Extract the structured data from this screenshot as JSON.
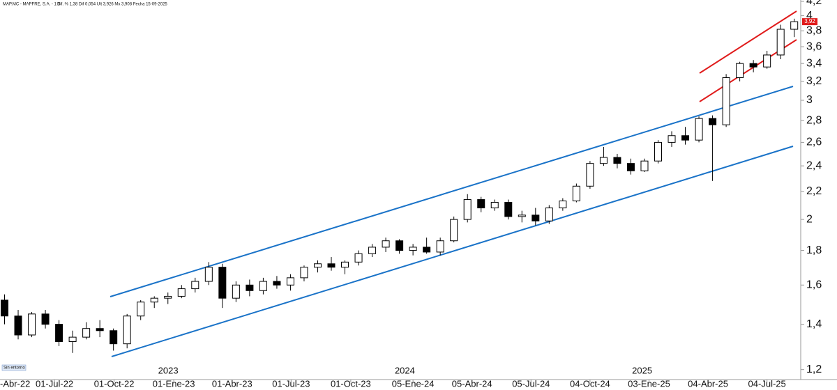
{
  "header": {
    "title": "MAP.MC - MAPFRE, S.A. - 1 S",
    "info": "Dif. % 1,38  Dif 0,054  Ult 3,926  Mx 3,908  Fecha 15-09-2025"
  },
  "footer_tag": "Sin entorno",
  "chart_data": {
    "type": "candlestick",
    "x": [
      "2022-04-15",
      "2022-05-06",
      "2022-05-27",
      "2022-06-17",
      "2022-07-08",
      "2022-07-29",
      "2022-08-19",
      "2022-09-09",
      "2022-09-30",
      "2022-10-21",
      "2022-11-11",
      "2022-12-02",
      "2022-12-23",
      "2023-01-13",
      "2023-02-03",
      "2023-02-24",
      "2023-03-17",
      "2023-04-07",
      "2023-04-28",
      "2023-05-19",
      "2023-06-09",
      "2023-06-30",
      "2023-07-21",
      "2023-08-11",
      "2023-09-01",
      "2023-09-22",
      "2023-10-13",
      "2023-11-03",
      "2023-11-24",
      "2023-12-15",
      "2024-01-05",
      "2024-01-26",
      "2024-02-16",
      "2024-03-08",
      "2024-03-29",
      "2024-04-19",
      "2024-05-10",
      "2024-05-31",
      "2024-06-21",
      "2024-07-12",
      "2024-08-02",
      "2024-08-23",
      "2024-09-13",
      "2024-10-04",
      "2024-10-25",
      "2024-11-15",
      "2024-12-06",
      "2024-12-27",
      "2025-01-17",
      "2025-02-07",
      "2025-02-28",
      "2025-03-21",
      "2025-04-11",
      "2025-05-02",
      "2025-05-23",
      "2025-06-13",
      "2025-07-04",
      "2025-07-25",
      "2025-08-15"
    ],
    "open": [
      1.52,
      1.44,
      1.35,
      1.45,
      1.4,
      1.32,
      1.34,
      1.38,
      1.37,
      1.31,
      1.44,
      1.51,
      1.53,
      1.54,
      1.58,
      1.62,
      1.7,
      1.53,
      1.6,
      1.57,
      1.62,
      1.6,
      1.64,
      1.7,
      1.72,
      1.7,
      1.73,
      1.78,
      1.82,
      1.86,
      1.8,
      1.82,
      1.79,
      1.86,
      2.0,
      2.14,
      2.08,
      2.12,
      2.02,
      2.03,
      1.99,
      2.08,
      2.13,
      2.24,
      2.42,
      2.47,
      2.42,
      2.36,
      2.44,
      2.6,
      2.66,
      2.62,
      2.82,
      2.76,
      3.24,
      3.4,
      3.36,
      3.5,
      3.82
    ],
    "high": [
      1.55,
      1.47,
      1.46,
      1.47,
      1.42,
      1.37,
      1.41,
      1.42,
      1.38,
      1.45,
      1.52,
      1.54,
      1.56,
      1.6,
      1.64,
      1.73,
      1.72,
      1.62,
      1.63,
      1.64,
      1.65,
      1.66,
      1.71,
      1.74,
      1.76,
      1.74,
      1.8,
      1.84,
      1.88,
      1.87,
      1.84,
      1.88,
      1.88,
      2.02,
      2.18,
      2.16,
      2.14,
      2.14,
      2.06,
      2.08,
      2.1,
      2.15,
      2.26,
      2.44,
      2.56,
      2.5,
      2.46,
      2.46,
      2.62,
      2.7,
      2.74,
      2.84,
      2.85,
      3.28,
      3.42,
      3.44,
      3.55,
      3.88,
      3.96
    ],
    "low": [
      1.4,
      1.33,
      1.34,
      1.38,
      1.3,
      1.27,
      1.33,
      1.34,
      1.28,
      1.29,
      1.42,
      1.48,
      1.5,
      1.53,
      1.56,
      1.6,
      1.48,
      1.51,
      1.54,
      1.55,
      1.58,
      1.57,
      1.62,
      1.67,
      1.68,
      1.66,
      1.71,
      1.76,
      1.79,
      1.78,
      1.77,
      1.78,
      1.77,
      1.85,
      1.98,
      2.05,
      2.06,
      2.0,
      1.98,
      1.96,
      1.97,
      2.06,
      2.12,
      2.22,
      2.4,
      2.38,
      2.33,
      2.35,
      2.42,
      2.56,
      2.58,
      2.6,
      2.28,
      2.74,
      3.2,
      3.3,
      3.34,
      3.45,
      3.72
    ],
    "close": [
      1.44,
      1.35,
      1.45,
      1.4,
      1.32,
      1.34,
      1.38,
      1.37,
      1.31,
      1.44,
      1.51,
      1.53,
      1.54,
      1.58,
      1.62,
      1.7,
      1.53,
      1.6,
      1.57,
      1.62,
      1.6,
      1.64,
      1.7,
      1.72,
      1.7,
      1.73,
      1.78,
      1.82,
      1.86,
      1.8,
      1.82,
      1.79,
      1.86,
      2.0,
      2.14,
      2.08,
      2.12,
      2.02,
      2.03,
      1.99,
      2.08,
      2.13,
      2.24,
      2.42,
      2.47,
      2.42,
      2.36,
      2.44,
      2.6,
      2.66,
      2.62,
      2.82,
      2.76,
      3.24,
      3.4,
      3.36,
      3.5,
      3.82,
      3.92
    ],
    "up_color": "#ffffff",
    "down_color": "#000000",
    "log_scale": true,
    "ylim": [
      1.16,
      4.22
    ],
    "yticks": [
      {
        "value": 1.2,
        "label": "1,2"
      },
      {
        "value": 1.4,
        "label": "1,4"
      },
      {
        "value": 1.6,
        "label": "1,6"
      },
      {
        "value": 1.8,
        "label": "1,8"
      },
      2,
      {
        "value": 2.2,
        "label": "2,2"
      },
      {
        "value": 2.4,
        "label": "2,4"
      },
      {
        "value": 2.6,
        "label": "2,6"
      },
      {
        "value": 2.8,
        "label": "2,8"
      },
      3,
      {
        "value": 3.2,
        "label": "3,2"
      },
      {
        "value": 3.4,
        "label": "3,4"
      },
      {
        "value": 3.6,
        "label": "3,6"
      },
      {
        "value": 3.8,
        "label": "3,8"
      },
      4,
      {
        "value": 4.2,
        "label": "4,2"
      }
    ],
    "xlim": [
      "2022-04-08",
      "2025-08-25"
    ],
    "xticks": [
      {
        "value": "2022-04-01",
        "label": "-Abr-22"
      },
      {
        "value": "2022-07-01",
        "label": "01-Jul-22"
      },
      {
        "value": "2022-10-01",
        "label": "01-Oct-22"
      },
      {
        "value": "2023-01-01",
        "label": "01-Ene-23"
      },
      {
        "value": "2023-04-01",
        "label": "01-Abr-23"
      },
      {
        "value": "2023-07-01",
        "label": "01-Jul-23"
      },
      {
        "value": "2023-10-01",
        "label": "01-Oct-23"
      },
      {
        "value": "2024-01-05",
        "label": "05-Ene-24"
      },
      {
        "value": "2024-04-05",
        "label": "05-Abr-24"
      },
      {
        "value": "2024-07-05",
        "label": "05-Jul-24"
      },
      {
        "value": "2024-10-04",
        "label": "04-Oct-24"
      },
      {
        "value": "2025-01-03",
        "label": "03-Ene-25"
      },
      {
        "value": "2025-04-04",
        "label": "04-Abr-25"
      },
      {
        "value": "2025-07-04",
        "label": "04-Jul-25"
      }
    ],
    "year_labels": [
      {
        "value": "2023-01-01",
        "label": "2023"
      },
      {
        "value": "2024-01-01",
        "label": "2024"
      },
      {
        "value": "2025-01-01",
        "label": "2025"
      }
    ],
    "price_tag": {
      "value": 3.92,
      "label": "3,92"
    }
  }
}
